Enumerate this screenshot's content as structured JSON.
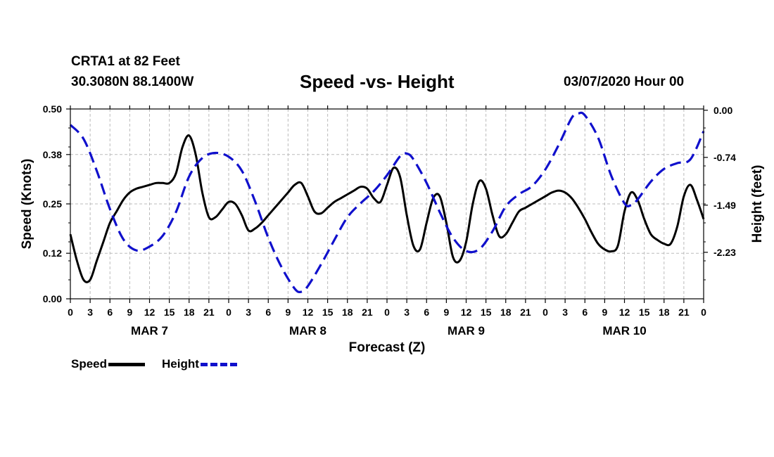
{
  "header": {
    "station": "CRTA1 at 82 Feet",
    "coords": "30.3080N 88.1400W",
    "title": "Speed -vs- Height",
    "run": "03/07/2020 Hour 00"
  },
  "colors": {
    "speed": "#000000",
    "height": "#1010cc",
    "grid": "#bbbbbb"
  },
  "chart_data": {
    "type": "line",
    "title": "Speed -vs- Height",
    "xlabel": "Forecast (Z)",
    "ylabel_left": "Speed (Knots)",
    "ylabel_right": "Height (feet)",
    "y_left_range": [
      0.0,
      0.5
    ],
    "y_right_range": [
      -2.96,
      0.02
    ],
    "x_range_hours": [
      0,
      96
    ],
    "left_ticks": [
      "0.50",
      "0.38",
      "0.25",
      "0.12",
      "0.00"
    ],
    "right_ticks": [
      "0.00",
      "-0.74",
      "-1.49",
      "-2.23"
    ],
    "right_tick_values": [
      0.0,
      -0.74,
      -1.49,
      -2.23
    ],
    "x_tick_labels": [
      "0",
      "3",
      "6",
      "9",
      "12",
      "15",
      "18",
      "21",
      "0",
      "3",
      "6",
      "9",
      "12",
      "15",
      "18",
      "21",
      "0",
      "3",
      "6",
      "9",
      "12",
      "15",
      "18",
      "21",
      "0",
      "3",
      "6",
      "9",
      "12",
      "15",
      "18",
      "21",
      "0"
    ],
    "dates": [
      {
        "label": "MAR 7",
        "hour": 12
      },
      {
        "label": "MAR 8",
        "hour": 36
      },
      {
        "label": "MAR 9",
        "hour": 60
      },
      {
        "label": "MAR 10",
        "hour": 84
      }
    ],
    "grid": true,
    "legend": [
      {
        "name": "Speed",
        "style": "solid"
      },
      {
        "name": "Height",
        "style": "dashed"
      }
    ],
    "series": [
      {
        "name": "Speed",
        "axis": "left",
        "style": "solid",
        "points": [
          [
            0,
            0.17
          ],
          [
            1,
            0.1
          ],
          [
            2,
            0.05
          ],
          [
            3,
            0.05
          ],
          [
            4,
            0.1
          ],
          [
            5,
            0.15
          ],
          [
            6,
            0.2
          ],
          [
            7,
            0.23
          ],
          [
            8,
            0.26
          ],
          [
            9,
            0.28
          ],
          [
            10,
            0.29
          ],
          [
            11,
            0.295
          ],
          [
            12,
            0.3
          ],
          [
            13,
            0.305
          ],
          [
            14,
            0.305
          ],
          [
            15,
            0.305
          ],
          [
            16,
            0.33
          ],
          [
            17,
            0.4
          ],
          [
            18,
            0.43
          ],
          [
            19,
            0.38
          ],
          [
            20,
            0.28
          ],
          [
            21,
            0.215
          ],
          [
            22,
            0.215
          ],
          [
            23,
            0.235
          ],
          [
            24,
            0.255
          ],
          [
            25,
            0.25
          ],
          [
            26,
            0.22
          ],
          [
            27,
            0.18
          ],
          [
            28,
            0.185
          ],
          [
            29,
            0.2
          ],
          [
            30,
            0.22
          ],
          [
            31,
            0.24
          ],
          [
            32,
            0.26
          ],
          [
            33,
            0.28
          ],
          [
            34,
            0.3
          ],
          [
            35,
            0.305
          ],
          [
            36,
            0.27
          ],
          [
            37,
            0.23
          ],
          [
            38,
            0.225
          ],
          [
            39,
            0.24
          ],
          [
            40,
            0.255
          ],
          [
            41,
            0.265
          ],
          [
            42,
            0.275
          ],
          [
            43,
            0.285
          ],
          [
            44,
            0.295
          ],
          [
            45,
            0.29
          ],
          [
            46,
            0.265
          ],
          [
            47,
            0.255
          ],
          [
            48,
            0.3
          ],
          [
            49,
            0.345
          ],
          [
            50,
            0.32
          ],
          [
            51,
            0.22
          ],
          [
            52,
            0.14
          ],
          [
            53,
            0.13
          ],
          [
            54,
            0.2
          ],
          [
            55,
            0.265
          ],
          [
            56,
            0.27
          ],
          [
            57,
            0.2
          ],
          [
            58,
            0.11
          ],
          [
            59,
            0.1
          ],
          [
            60,
            0.15
          ],
          [
            61,
            0.25
          ],
          [
            62,
            0.31
          ],
          [
            63,
            0.29
          ],
          [
            64,
            0.22
          ],
          [
            65,
            0.165
          ],
          [
            66,
            0.17
          ],
          [
            67,
            0.2
          ],
          [
            68,
            0.23
          ],
          [
            69,
            0.24
          ],
          [
            70,
            0.25
          ],
          [
            71,
            0.26
          ],
          [
            72,
            0.27
          ],
          [
            73,
            0.28
          ],
          [
            74,
            0.285
          ],
          [
            75,
            0.28
          ],
          [
            76,
            0.265
          ],
          [
            77,
            0.24
          ],
          [
            78,
            0.21
          ],
          [
            79,
            0.175
          ],
          [
            80,
            0.145
          ],
          [
            81,
            0.13
          ],
          [
            82,
            0.125
          ],
          [
            83,
            0.14
          ],
          [
            84,
            0.23
          ],
          [
            85,
            0.28
          ],
          [
            86,
            0.26
          ],
          [
            87,
            0.21
          ],
          [
            88,
            0.17
          ],
          [
            89,
            0.155
          ],
          [
            90,
            0.145
          ],
          [
            91,
            0.145
          ],
          [
            92,
            0.19
          ],
          [
            93,
            0.27
          ],
          [
            94,
            0.3
          ],
          [
            95,
            0.26
          ],
          [
            96,
            0.21
          ]
        ]
      },
      {
        "name": "Height",
        "axis": "right",
        "style": "dashed",
        "points": [
          [
            0,
            -0.23
          ],
          [
            2,
            -0.45
          ],
          [
            4,
            -0.95
          ],
          [
            6,
            -1.55
          ],
          [
            8,
            -2.02
          ],
          [
            10,
            -2.2
          ],
          [
            12,
            -2.14
          ],
          [
            14,
            -1.97
          ],
          [
            16,
            -1.6
          ],
          [
            18,
            -1.04
          ],
          [
            20,
            -0.75
          ],
          [
            22,
            -0.67
          ],
          [
            24,
            -0.73
          ],
          [
            26,
            -0.95
          ],
          [
            28,
            -1.43
          ],
          [
            30,
            -2.0
          ],
          [
            32,
            -2.46
          ],
          [
            34,
            -2.8
          ],
          [
            35,
            -2.85
          ],
          [
            36,
            -2.76
          ],
          [
            38,
            -2.42
          ],
          [
            40,
            -2.04
          ],
          [
            42,
            -1.68
          ],
          [
            44,
            -1.46
          ],
          [
            46,
            -1.27
          ],
          [
            48,
            -1.02
          ],
          [
            50,
            -0.72
          ],
          [
            51,
            -0.68
          ],
          [
            52,
            -0.77
          ],
          [
            54,
            -1.14
          ],
          [
            56,
            -1.6
          ],
          [
            58,
            -2.0
          ],
          [
            60,
            -2.21
          ],
          [
            62,
            -2.18
          ],
          [
            64,
            -1.9
          ],
          [
            66,
            -1.51
          ],
          [
            68,
            -1.32
          ],
          [
            70,
            -1.19
          ],
          [
            72,
            -0.93
          ],
          [
            74,
            -0.55
          ],
          [
            76,
            -0.12
          ],
          [
            77,
            -0.05
          ],
          [
            78,
            -0.08
          ],
          [
            80,
            -0.43
          ],
          [
            82,
            -1.03
          ],
          [
            84,
            -1.46
          ],
          [
            85,
            -1.49
          ],
          [
            86,
            -1.4
          ],
          [
            88,
            -1.12
          ],
          [
            90,
            -0.92
          ],
          [
            92,
            -0.83
          ],
          [
            94,
            -0.77
          ],
          [
            96,
            -0.33
          ]
        ]
      }
    ]
  },
  "labels": {
    "xlabel": "Forecast (Z)",
    "ylabel_left": "Speed (Knots)",
    "ylabel_right": "Height (feet)",
    "legend_speed": "Speed",
    "legend_height": "Height"
  }
}
